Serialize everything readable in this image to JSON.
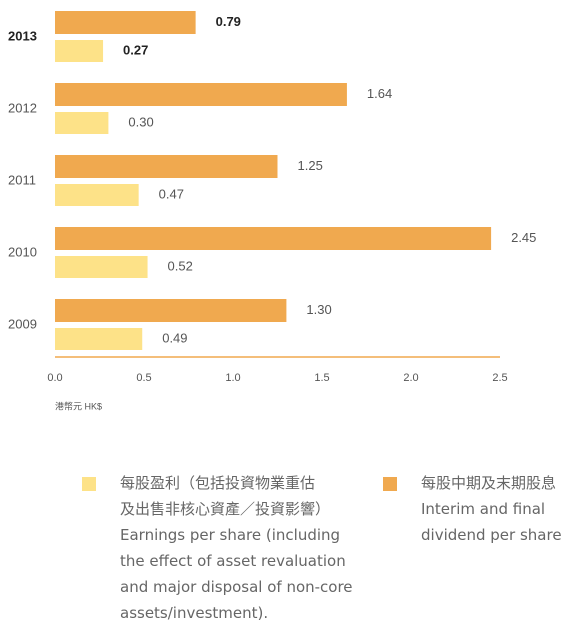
{
  "chart_data": {
    "type": "bar",
    "orientation": "horizontal",
    "categories": [
      "2013",
      "2012",
      "2011",
      "2010",
      "2009"
    ],
    "series": [
      {
        "name": "每股中期及末期股息\nInterim and final\ndividend per share",
        "color": "#f0a94f",
        "values": [
          0.79,
          1.64,
          1.25,
          2.45,
          1.3
        ],
        "value_labels": [
          "0.79",
          "1.64",
          "1.25",
          "2.45",
          "1.30"
        ]
      },
      {
        "name": "每股盈利（包括投資物業重估\n及出售非核心資產／投資影響）\nEarnings per share (including\nthe effect of asset revaluation\nand major disposal of non-core\nassets/investment).",
        "color": "#fde288",
        "values": [
          0.27,
          0.3,
          0.47,
          0.52,
          0.49
        ],
        "value_labels": [
          "0.27",
          "0.30",
          "0.47",
          "0.52",
          "0.49"
        ]
      }
    ],
    "xlabel": "港幣元 HK$",
    "xlim": [
      0,
      2.5
    ],
    "xticks": [
      {
        "value": 0,
        "label": "0.0"
      },
      0.5,
      {
        "value": 1,
        "label": "1.0"
      },
      1.5,
      {
        "value": 2,
        "label": "2.0"
      },
      2.5
    ]
  }
}
